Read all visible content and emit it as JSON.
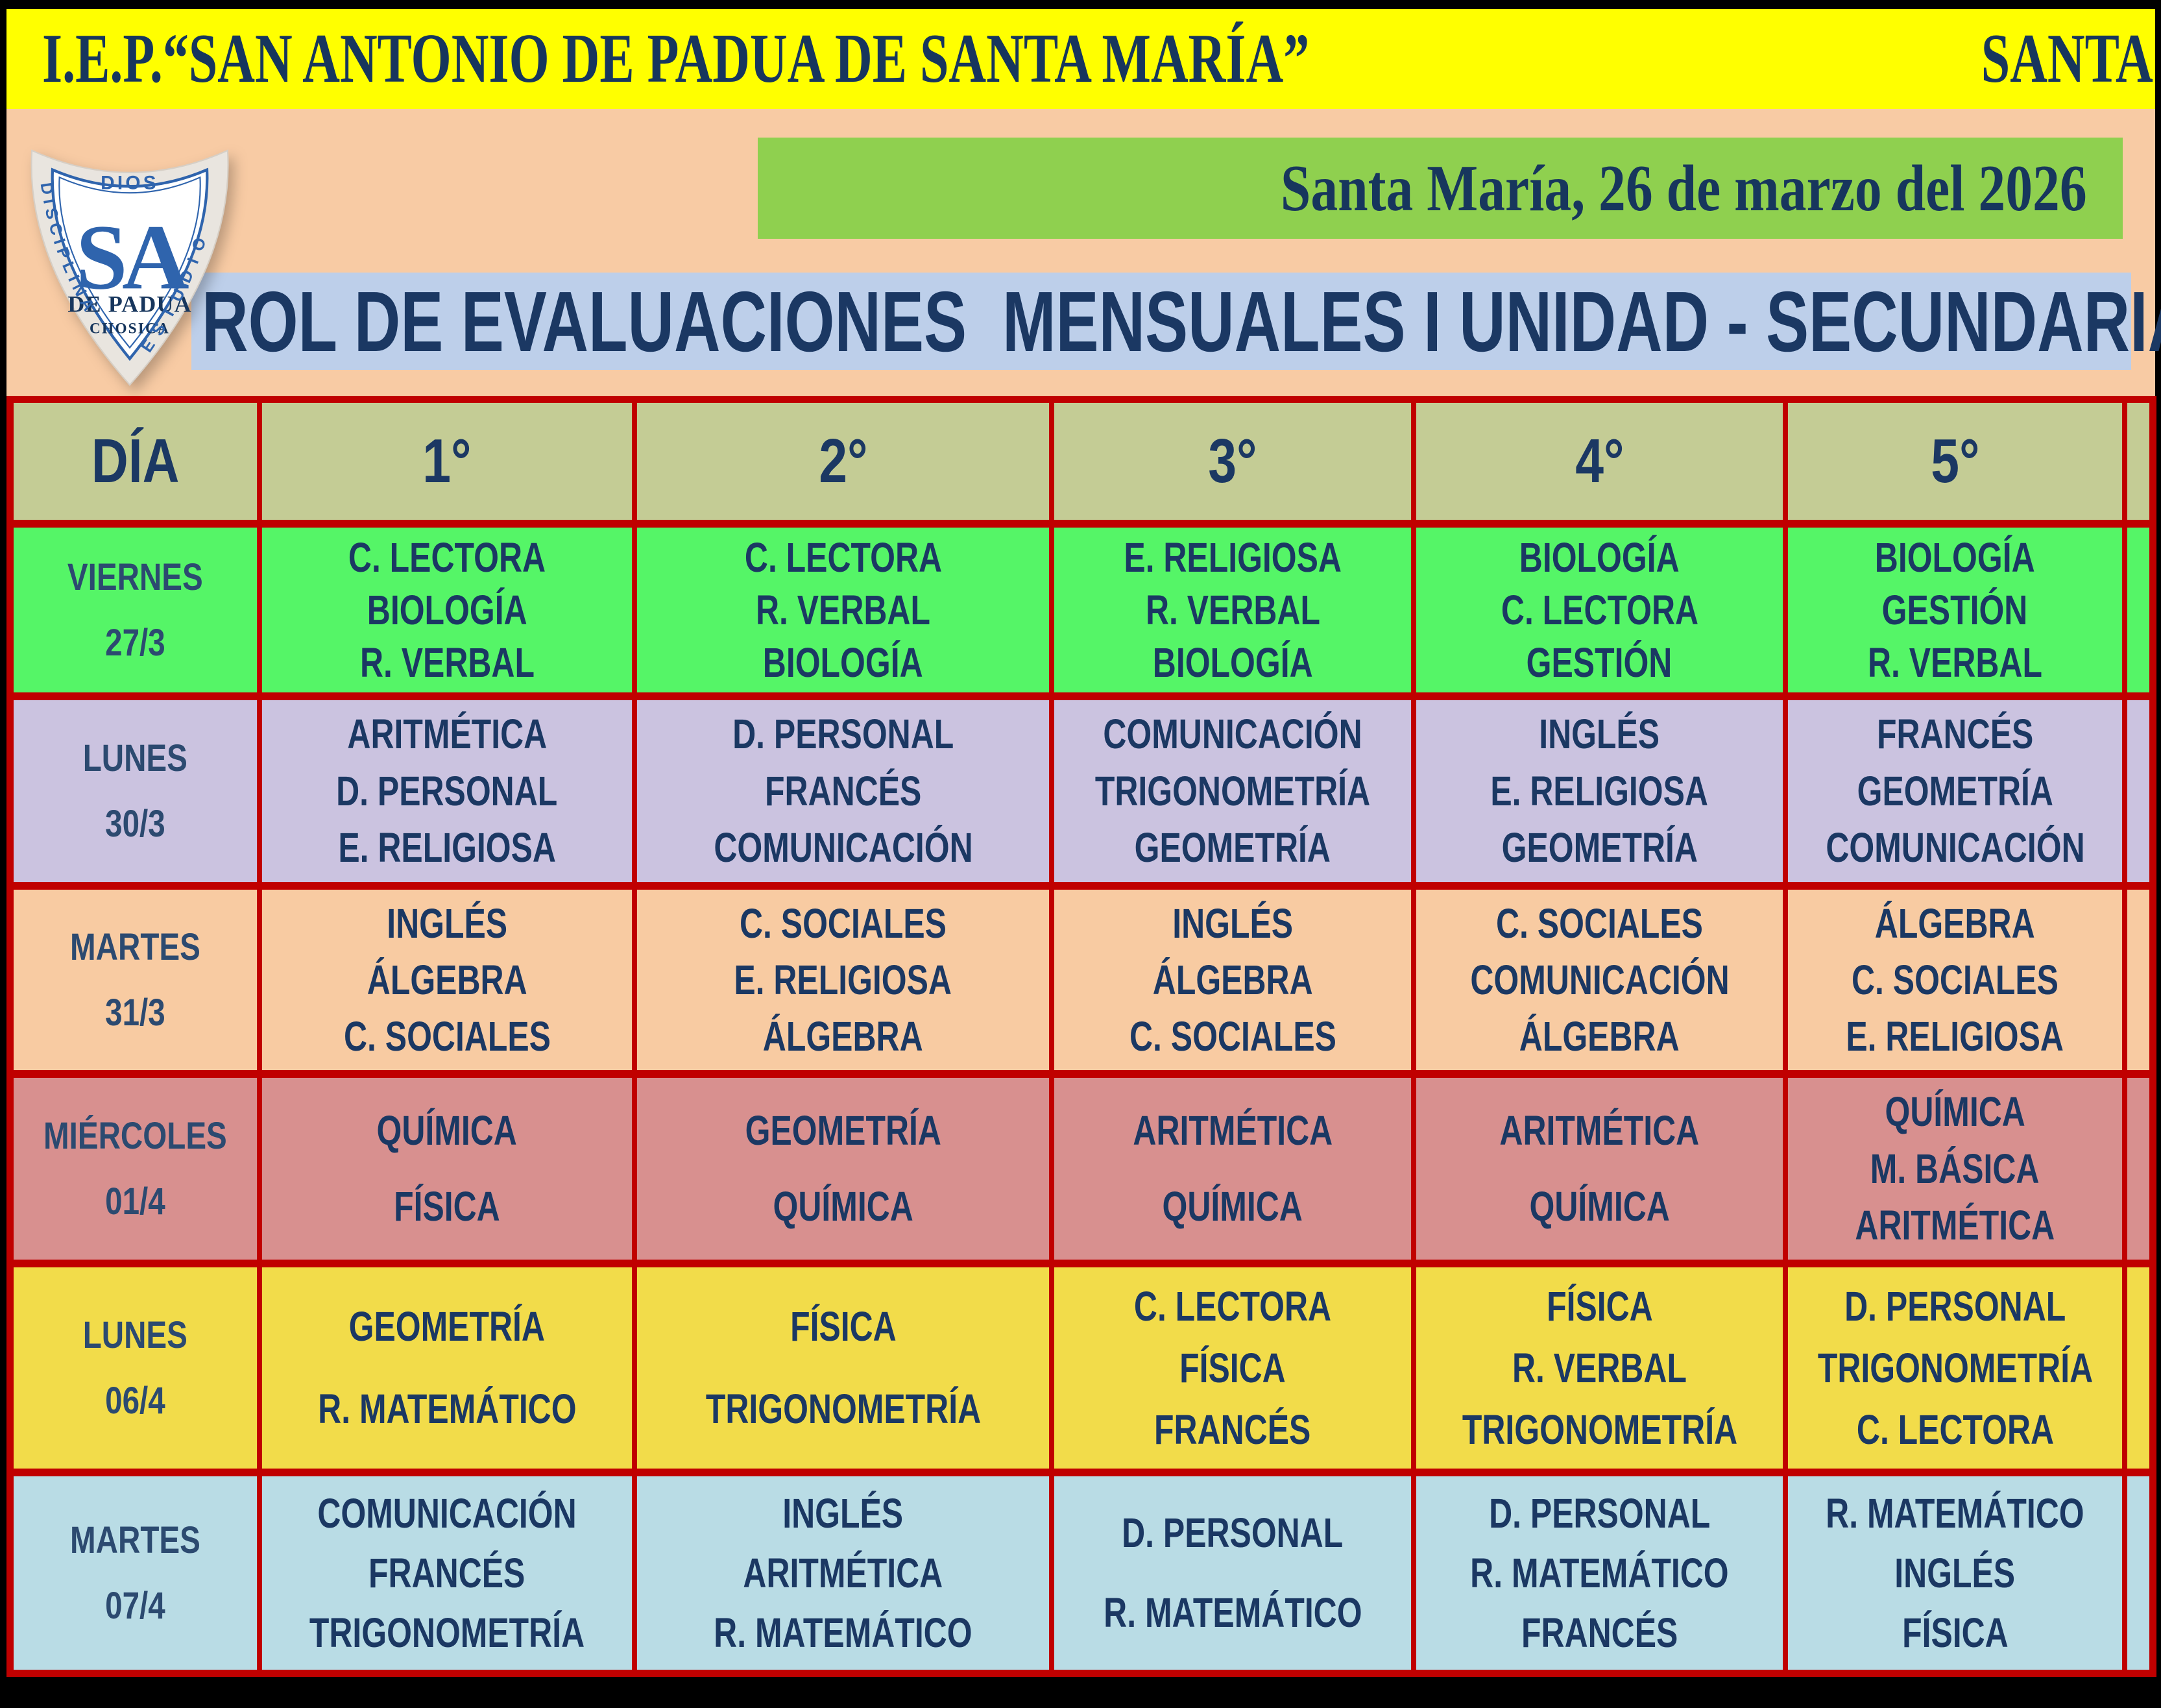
{
  "header_bar": {
    "school_name": "I.E.P.“SAN ANTONIO DE PADUA DE SANTA MARÍA”",
    "location": "SANTA MARÍA - CHOSICA",
    "bg": "#FFFF00",
    "text_color": "#17365D"
  },
  "logo": {
    "motto_top": "DIOS",
    "motto_left": "DISCIPLINA",
    "motto_right": "ESTUDIO",
    "initials": "SA",
    "line1": "DE PADUA",
    "line2": "CHOSICA"
  },
  "date_banner": {
    "text": "Santa María, 26 de marzo del 2026",
    "bg": "#8FD04F"
  },
  "title_banner": {
    "text": "ROL DE EVALUACIONES  MENSUALES I UNIDAD - SECUNDARIA",
    "bg": "#BDCFEA"
  },
  "table": {
    "border_color": "#C00000",
    "header": {
      "bg": "#C4CC95",
      "cells": [
        "DÍA",
        "1°",
        "2°",
        "3°",
        "4°",
        "5°"
      ]
    },
    "rows": [
      {
        "day": "VIERNES",
        "date": "27/3",
        "bg": "#55F567",
        "cells": [
          [
            "C. LECTORA",
            "BIOLOGÍA",
            "R. VERBAL"
          ],
          [
            "C. LECTORA",
            "R. VERBAL",
            "BIOLOGÍA"
          ],
          [
            "E. RELIGIOSA",
            "R. VERBAL",
            "BIOLOGÍA"
          ],
          [
            "BIOLOGÍA",
            "C. LECTORA",
            "GESTIÓN"
          ],
          [
            "BIOLOGÍA",
            "GESTIÓN",
            "R. VERBAL"
          ]
        ]
      },
      {
        "day": "LUNES",
        "date": "30/3",
        "bg": "#CBC3E0",
        "cells": [
          [
            "ARITMÉTICA",
            "D. PERSONAL",
            "E. RELIGIOSA"
          ],
          [
            "D. PERSONAL",
            "FRANCÉS",
            "COMUNICACIÓN"
          ],
          [
            "COMUNICACIÓN",
            "TRIGONOMETRÍA",
            "GEOMETRÍA"
          ],
          [
            "INGLÉS",
            "E. RELIGIOSA",
            "GEOMETRÍA"
          ],
          [
            "FRANCÉS",
            "GEOMETRÍA",
            "COMUNICACIÓN"
          ]
        ]
      },
      {
        "day": "MARTES",
        "date": "31/3",
        "bg": "#F8CBA2",
        "cells": [
          [
            "INGLÉS",
            "ÁLGEBRA",
            "C. SOCIALES"
          ],
          [
            "C. SOCIALES",
            "E. RELIGIOSA",
            "ÁLGEBRA"
          ],
          [
            "INGLÉS",
            "ÁLGEBRA",
            "C. SOCIALES"
          ],
          [
            "C. SOCIALES",
            "COMUNICACIÓN",
            "ÁLGEBRA"
          ],
          [
            "ÁLGEBRA",
            "C. SOCIALES",
            "E. RELIGIOSA"
          ]
        ]
      },
      {
        "day": "MIÉRCOLES",
        "date": "01/4",
        "bg": "#D8908F",
        "cells": [
          [
            "QUÍMICA",
            "FÍSICA"
          ],
          [
            "GEOMETRÍA",
            "QUÍMICA"
          ],
          [
            "ARITMÉTICA",
            "QUÍMICA"
          ],
          [
            "ARITMÉTICA",
            "QUÍMICA"
          ],
          [
            "QUÍMICA",
            "M. BÁSICA",
            "ARITMÉTICA"
          ]
        ]
      },
      {
        "day": "LUNES",
        "date": "06/4",
        "bg": "#F2DC4A",
        "cells": [
          [
            "GEOMETRÍA",
            "R. MATEMÁTICO"
          ],
          [
            "FÍSICA",
            "TRIGONOMETRÍA"
          ],
          [
            "C. LECTORA",
            "FÍSICA",
            "FRANCÉS"
          ],
          [
            "FÍSICA",
            "R. VERBAL",
            "TRIGONOMETRÍA"
          ],
          [
            "D. PERSONAL",
            "TRIGONOMETRÍA",
            "C. LECTORA"
          ]
        ]
      },
      {
        "day": "MARTES",
        "date": "07/4",
        "bg": "#B9DCE5",
        "cells": [
          [
            "COMUNICACIÓN",
            "FRANCÉS",
            "TRIGONOMETRÍA"
          ],
          [
            "INGLÉS",
            "ARITMÉTICA",
            "R. MATEMÁTICO"
          ],
          [
            "D. PERSONAL",
            "R. MATEMÁTICO"
          ],
          [
            "D. PERSONAL",
            "R. MATEMÁTICO",
            "FRANCÉS"
          ],
          [
            "R. MATEMÁTICO",
            "INGLÉS",
            "FÍSICA"
          ]
        ]
      }
    ]
  }
}
